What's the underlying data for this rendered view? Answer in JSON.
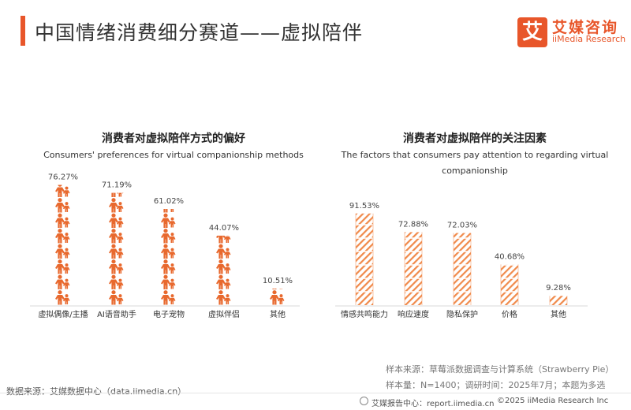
{
  "header": {
    "title": "中国情绪消费细分赛道——虚拟陪伴",
    "logo_glyph": "艾",
    "brand_cn": "艾媒咨询",
    "brand_en": "iiMedia Research"
  },
  "chart_data": [
    {
      "type": "bar",
      "title": "消费者对虚拟陪伴方式的偏好",
      "subtitle": "Consumers' preferences for virtual companionship methods",
      "categories": [
        "虚拟偶像/主播",
        "AI语音助手",
        "电子宠物",
        "虚拟伴侣",
        "其他"
      ],
      "values": [
        76.27,
        71.19,
        61.02,
        44.07,
        10.51
      ],
      "value_labels": [
        "76.27%",
        "71.19%",
        "61.02%",
        "44.07%",
        "10.51%"
      ],
      "unit": "%",
      "ylim": [
        0,
        80
      ],
      "mark": "person-pictogram",
      "color": "#e8692e",
      "grid": false
    },
    {
      "type": "bar",
      "title": "消费者对虚拟陪伴的关注因素",
      "subtitle": "The factors that consumers pay attention to regarding virtual companionship",
      "categories": [
        "情感共鸣能力",
        "响应速度",
        "隐私保护",
        "价格",
        "其他"
      ],
      "values": [
        91.53,
        72.88,
        72.03,
        40.68,
        9.28
      ],
      "value_labels": [
        "91.53%",
        "72.88%",
        "72.03%",
        "40.68%",
        "9.28%"
      ],
      "unit": "%",
      "ylim": [
        0,
        100
      ],
      "mark": "hatched-tile",
      "color": "#f08a4b",
      "grid": false
    }
  ],
  "notes": {
    "sample_source": "样本来源：草莓派数据调查与计算系统（Strawberry Pie）",
    "sample_info": "样本量：N=1400；调研时间：2025年7月；本题为多选"
  },
  "footer": {
    "data_source": "数据来源：艾媒数据中心（data.iimedia.cn）",
    "report_center": "艾媒报告中心：report.iimedia.cn",
    "copyright": "©2025  iiMedia Research  Inc"
  }
}
